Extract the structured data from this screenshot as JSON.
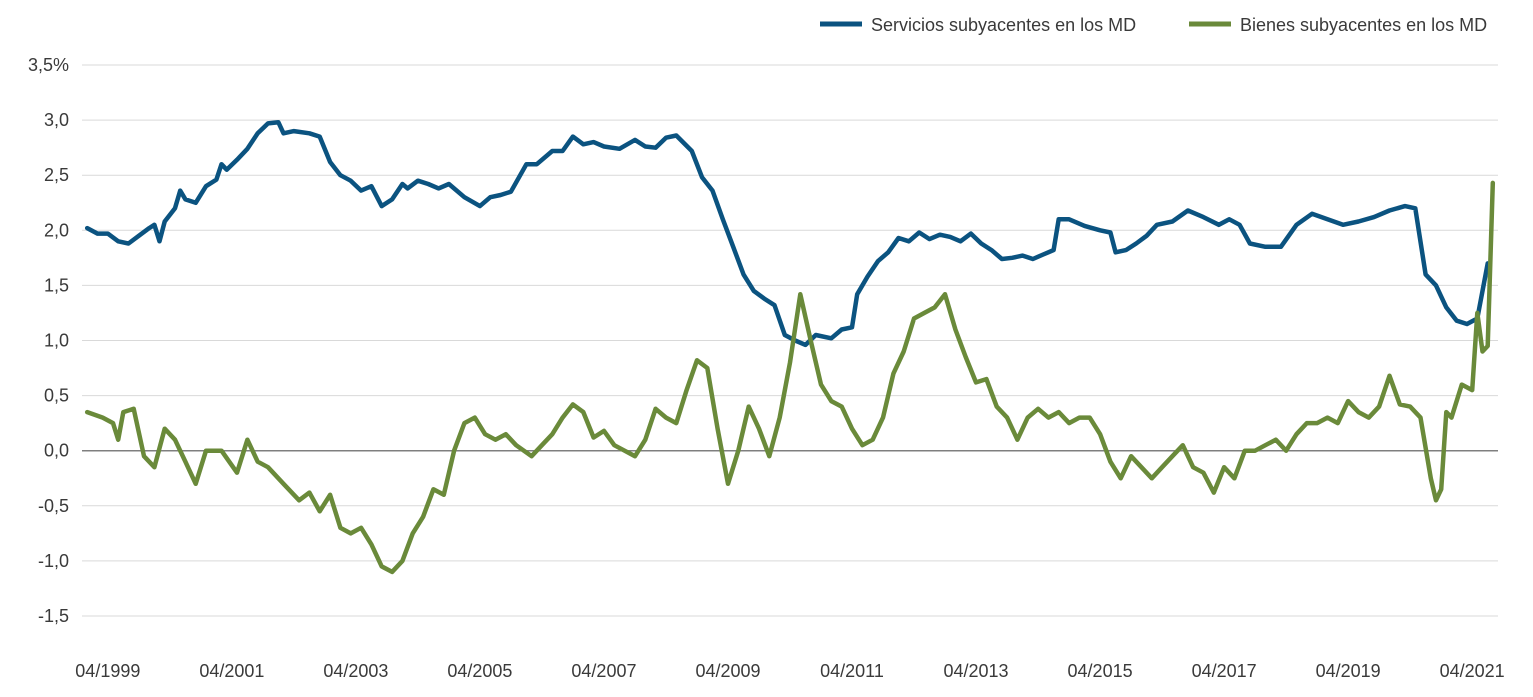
{
  "chart_data": {
    "type": "line",
    "title": "",
    "xlabel": "",
    "ylabel": "",
    "ylim": [
      -1.5,
      3.5
    ],
    "xlim": [
      "1998-11",
      "2021-09"
    ],
    "grid": true,
    "legend_position": "top-right",
    "y_ticks": [
      {
        "value": 3.5,
        "label": "3,5%"
      },
      {
        "value": 3.0,
        "label": "3,0"
      },
      {
        "value": 2.5,
        "label": "2,5"
      },
      {
        "value": 2.0,
        "label": "2,0"
      },
      {
        "value": 1.5,
        "label": "1,5"
      },
      {
        "value": 1.0,
        "label": "1,0"
      },
      {
        "value": 0.5,
        "label": "0,5"
      },
      {
        "value": 0.0,
        "label": "0,0"
      },
      {
        "value": -0.5,
        "label": "-0,5"
      },
      {
        "value": -1.0,
        "label": "-1,0"
      },
      {
        "value": -1.5,
        "label": "-1,5"
      }
    ],
    "x_ticks": [
      {
        "value": "1999-04",
        "label": "04/1999"
      },
      {
        "value": "2001-04",
        "label": "04/2001"
      },
      {
        "value": "2003-04",
        "label": "04/2003"
      },
      {
        "value": "2005-04",
        "label": "04/2005"
      },
      {
        "value": "2007-04",
        "label": "04/2007"
      },
      {
        "value": "2009-04",
        "label": "04/2009"
      },
      {
        "value": "2011-04",
        "label": "04/2011"
      },
      {
        "value": "2013-04",
        "label": "04/2013"
      },
      {
        "value": "2015-04",
        "label": "04/2015"
      },
      {
        "value": "2017-04",
        "label": "04/2017"
      },
      {
        "value": "2019-04",
        "label": "04/2019"
      },
      {
        "value": "2021-04",
        "label": "04/2021"
      }
    ],
    "series": [
      {
        "name": "Servicios subyacentes en los MD",
        "color": "#0b5380",
        "points": [
          [
            "1998-12",
            2.02
          ],
          [
            "1999-02",
            1.97
          ],
          [
            "1999-04",
            1.97
          ],
          [
            "1999-06",
            1.9
          ],
          [
            "1999-08",
            1.88
          ],
          [
            "1999-10",
            1.95
          ],
          [
            "1999-12",
            2.02
          ],
          [
            "2000-01",
            2.05
          ],
          [
            "2000-02",
            1.9
          ],
          [
            "2000-03",
            2.08
          ],
          [
            "2000-05",
            2.2
          ],
          [
            "2000-06",
            2.36
          ],
          [
            "2000-07",
            2.28
          ],
          [
            "2000-09",
            2.25
          ],
          [
            "2000-11",
            2.4
          ],
          [
            "2001-01",
            2.46
          ],
          [
            "2001-02",
            2.6
          ],
          [
            "2001-03",
            2.55
          ],
          [
            "2001-05",
            2.64
          ],
          [
            "2001-07",
            2.74
          ],
          [
            "2001-09",
            2.88
          ],
          [
            "2001-11",
            2.97
          ],
          [
            "2002-01",
            2.98
          ],
          [
            "2002-02",
            2.88
          ],
          [
            "2002-04",
            2.9
          ],
          [
            "2002-07",
            2.88
          ],
          [
            "2002-09",
            2.85
          ],
          [
            "2002-11",
            2.62
          ],
          [
            "2003-01",
            2.5
          ],
          [
            "2003-03",
            2.45
          ],
          [
            "2003-05",
            2.36
          ],
          [
            "2003-07",
            2.4
          ],
          [
            "2003-09",
            2.22
          ],
          [
            "2003-11",
            2.28
          ],
          [
            "2004-01",
            2.42
          ],
          [
            "2004-02",
            2.38
          ],
          [
            "2004-04",
            2.45
          ],
          [
            "2004-06",
            2.42
          ],
          [
            "2004-08",
            2.38
          ],
          [
            "2004-10",
            2.42
          ],
          [
            "2005-01",
            2.3
          ],
          [
            "2005-04",
            2.22
          ],
          [
            "2005-06",
            2.3
          ],
          [
            "2005-08",
            2.32
          ],
          [
            "2005-10",
            2.35
          ],
          [
            "2006-01",
            2.6
          ],
          [
            "2006-03",
            2.6
          ],
          [
            "2006-06",
            2.72
          ],
          [
            "2006-08",
            2.72
          ],
          [
            "2006-10",
            2.85
          ],
          [
            "2006-12",
            2.78
          ],
          [
            "2007-02",
            2.8
          ],
          [
            "2007-04",
            2.76
          ],
          [
            "2007-07",
            2.74
          ],
          [
            "2007-10",
            2.82
          ],
          [
            "2007-12",
            2.76
          ],
          [
            "2008-02",
            2.75
          ],
          [
            "2008-04",
            2.84
          ],
          [
            "2008-06",
            2.86
          ],
          [
            "2008-09",
            2.72
          ],
          [
            "2008-11",
            2.48
          ],
          [
            "2009-01",
            2.36
          ],
          [
            "2009-03",
            2.1
          ],
          [
            "2009-05",
            1.85
          ],
          [
            "2009-07",
            1.6
          ],
          [
            "2009-09",
            1.45
          ],
          [
            "2009-11",
            1.38
          ],
          [
            "2010-01",
            1.32
          ],
          [
            "2010-03",
            1.05
          ],
          [
            "2010-05",
            1.0
          ],
          [
            "2010-07",
            0.96
          ],
          [
            "2010-09",
            1.05
          ],
          [
            "2010-12",
            1.02
          ],
          [
            "2011-02",
            1.1
          ],
          [
            "2011-04",
            1.12
          ],
          [
            "2011-05",
            1.42
          ],
          [
            "2011-07",
            1.58
          ],
          [
            "2011-09",
            1.72
          ],
          [
            "2011-11",
            1.8
          ],
          [
            "2012-01",
            1.93
          ],
          [
            "2012-03",
            1.9
          ],
          [
            "2012-05",
            1.98
          ],
          [
            "2012-07",
            1.92
          ],
          [
            "2012-09",
            1.96
          ],
          [
            "2012-11",
            1.94
          ],
          [
            "2013-01",
            1.9
          ],
          [
            "2013-03",
            1.97
          ],
          [
            "2013-05",
            1.88
          ],
          [
            "2013-07",
            1.82
          ],
          [
            "2013-09",
            1.74
          ],
          [
            "2013-11",
            1.75
          ],
          [
            "2014-01",
            1.77
          ],
          [
            "2014-03",
            1.74
          ],
          [
            "2014-05",
            1.78
          ],
          [
            "2014-07",
            1.82
          ],
          [
            "2014-08",
            2.1
          ],
          [
            "2014-10",
            2.1
          ],
          [
            "2015-01",
            2.04
          ],
          [
            "2015-04",
            2.0
          ],
          [
            "2015-06",
            1.98
          ],
          [
            "2015-07",
            1.8
          ],
          [
            "2015-09",
            1.82
          ],
          [
            "2015-11",
            1.88
          ],
          [
            "2016-01",
            1.95
          ],
          [
            "2016-03",
            2.05
          ],
          [
            "2016-06",
            2.08
          ],
          [
            "2016-09",
            2.18
          ],
          [
            "2016-12",
            2.12
          ],
          [
            "2017-03",
            2.05
          ],
          [
            "2017-05",
            2.1
          ],
          [
            "2017-07",
            2.05
          ],
          [
            "2017-09",
            1.88
          ],
          [
            "2017-12",
            1.85
          ],
          [
            "2018-03",
            1.85
          ],
          [
            "2018-06",
            2.05
          ],
          [
            "2018-09",
            2.15
          ],
          [
            "2018-12",
            2.1
          ],
          [
            "2019-03",
            2.05
          ],
          [
            "2019-06",
            2.08
          ],
          [
            "2019-09",
            2.12
          ],
          [
            "2019-12",
            2.18
          ],
          [
            "2020-03",
            2.22
          ],
          [
            "2020-05",
            2.2
          ],
          [
            "2020-07",
            1.6
          ],
          [
            "2020-09",
            1.5
          ],
          [
            "2020-11",
            1.3
          ],
          [
            "2021-01",
            1.18
          ],
          [
            "2021-03",
            1.15
          ],
          [
            "2021-05",
            1.2
          ],
          [
            "2021-07",
            1.7
          ]
        ]
      },
      {
        "name": "Bienes subyacentes en los MD",
        "color": "#6a8a3a",
        "points": [
          [
            "1998-12",
            0.35
          ],
          [
            "1999-03",
            0.3
          ],
          [
            "1999-05",
            0.25
          ],
          [
            "1999-06",
            0.1
          ],
          [
            "1999-07",
            0.35
          ],
          [
            "1999-09",
            0.38
          ],
          [
            "1999-11",
            -0.05
          ],
          [
            "2000-01",
            -0.15
          ],
          [
            "2000-03",
            0.2
          ],
          [
            "2000-05",
            0.1
          ],
          [
            "2000-07",
            -0.1
          ],
          [
            "2000-09",
            -0.3
          ],
          [
            "2000-11",
            0.0
          ],
          [
            "2001-02",
            0.0
          ],
          [
            "2001-05",
            -0.2
          ],
          [
            "2001-07",
            0.1
          ],
          [
            "2001-09",
            -0.1
          ],
          [
            "2001-11",
            -0.15
          ],
          [
            "2002-02",
            -0.3
          ],
          [
            "2002-05",
            -0.45
          ],
          [
            "2002-07",
            -0.38
          ],
          [
            "2002-09",
            -0.55
          ],
          [
            "2002-11",
            -0.4
          ],
          [
            "2003-01",
            -0.7
          ],
          [
            "2003-03",
            -0.75
          ],
          [
            "2003-05",
            -0.7
          ],
          [
            "2003-07",
            -0.85
          ],
          [
            "2003-09",
            -1.05
          ],
          [
            "2003-11",
            -1.1
          ],
          [
            "2004-01",
            -1.0
          ],
          [
            "2004-03",
            -0.75
          ],
          [
            "2004-05",
            -0.6
          ],
          [
            "2004-07",
            -0.35
          ],
          [
            "2004-09",
            -0.4
          ],
          [
            "2004-11",
            0.0
          ],
          [
            "2005-01",
            0.25
          ],
          [
            "2005-03",
            0.3
          ],
          [
            "2005-05",
            0.15
          ],
          [
            "2005-07",
            0.1
          ],
          [
            "2005-09",
            0.15
          ],
          [
            "2005-11",
            0.05
          ],
          [
            "2006-02",
            -0.05
          ],
          [
            "2006-04",
            0.05
          ],
          [
            "2006-06",
            0.15
          ],
          [
            "2006-08",
            0.3
          ],
          [
            "2006-10",
            0.42
          ],
          [
            "2006-12",
            0.35
          ],
          [
            "2007-02",
            0.12
          ],
          [
            "2007-04",
            0.18
          ],
          [
            "2007-06",
            0.05
          ],
          [
            "2007-08",
            0.0
          ],
          [
            "2007-10",
            -0.05
          ],
          [
            "2007-12",
            0.1
          ],
          [
            "2008-02",
            0.38
          ],
          [
            "2008-04",
            0.3
          ],
          [
            "2008-06",
            0.25
          ],
          [
            "2008-08",
            0.55
          ],
          [
            "2008-10",
            0.82
          ],
          [
            "2008-12",
            0.75
          ],
          [
            "2009-02",
            0.2
          ],
          [
            "2009-04",
            -0.3
          ],
          [
            "2009-06",
            0.0
          ],
          [
            "2009-08",
            0.4
          ],
          [
            "2009-10",
            0.2
          ],
          [
            "2009-12",
            -0.05
          ],
          [
            "2010-02",
            0.3
          ],
          [
            "2010-04",
            0.8
          ],
          [
            "2010-06",
            1.42
          ],
          [
            "2010-08",
            1.0
          ],
          [
            "2010-10",
            0.6
          ],
          [
            "2010-12",
            0.45
          ],
          [
            "2011-02",
            0.4
          ],
          [
            "2011-04",
            0.2
          ],
          [
            "2011-06",
            0.05
          ],
          [
            "2011-08",
            0.1
          ],
          [
            "2011-10",
            0.3
          ],
          [
            "2011-12",
            0.7
          ],
          [
            "2012-02",
            0.9
          ],
          [
            "2012-04",
            1.2
          ],
          [
            "2012-06",
            1.25
          ],
          [
            "2012-08",
            1.3
          ],
          [
            "2012-10",
            1.42
          ],
          [
            "2012-12",
            1.1
          ],
          [
            "2013-02",
            0.85
          ],
          [
            "2013-04",
            0.62
          ],
          [
            "2013-06",
            0.65
          ],
          [
            "2013-08",
            0.4
          ],
          [
            "2013-10",
            0.3
          ],
          [
            "2013-12",
            0.1
          ],
          [
            "2014-02",
            0.3
          ],
          [
            "2014-04",
            0.38
          ],
          [
            "2014-06",
            0.3
          ],
          [
            "2014-08",
            0.35
          ],
          [
            "2014-10",
            0.25
          ],
          [
            "2014-12",
            0.3
          ],
          [
            "2015-02",
            0.3
          ],
          [
            "2015-04",
            0.15
          ],
          [
            "2015-06",
            -0.1
          ],
          [
            "2015-08",
            -0.25
          ],
          [
            "2015-10",
            -0.05
          ],
          [
            "2015-12",
            -0.15
          ],
          [
            "2016-02",
            -0.25
          ],
          [
            "2016-04",
            -0.15
          ],
          [
            "2016-06",
            -0.05
          ],
          [
            "2016-08",
            0.05
          ],
          [
            "2016-10",
            -0.15
          ],
          [
            "2016-12",
            -0.2
          ],
          [
            "2017-02",
            -0.38
          ],
          [
            "2017-04",
            -0.15
          ],
          [
            "2017-06",
            -0.25
          ],
          [
            "2017-08",
            0.0
          ],
          [
            "2017-10",
            0.0
          ],
          [
            "2017-12",
            0.05
          ],
          [
            "2018-02",
            0.1
          ],
          [
            "2018-04",
            0.0
          ],
          [
            "2018-06",
            0.15
          ],
          [
            "2018-08",
            0.25
          ],
          [
            "2018-10",
            0.25
          ],
          [
            "2018-12",
            0.3
          ],
          [
            "2019-02",
            0.25
          ],
          [
            "2019-04",
            0.45
          ],
          [
            "2019-06",
            0.35
          ],
          [
            "2019-08",
            0.3
          ],
          [
            "2019-10",
            0.4
          ],
          [
            "2019-12",
            0.68
          ],
          [
            "2020-02",
            0.42
          ],
          [
            "2020-04",
            0.4
          ],
          [
            "2020-06",
            0.3
          ],
          [
            "2020-08",
            -0.25
          ],
          [
            "2020-09",
            -0.45
          ],
          [
            "2020-10",
            -0.35
          ],
          [
            "2020-11",
            0.35
          ],
          [
            "2020-12",
            0.3
          ],
          [
            "2021-02",
            0.6
          ],
          [
            "2021-04",
            0.55
          ],
          [
            "2021-05",
            1.25
          ],
          [
            "2021-06",
            0.9
          ],
          [
            "2021-07",
            0.95
          ],
          [
            "2021-08",
            2.43
          ]
        ]
      }
    ]
  }
}
